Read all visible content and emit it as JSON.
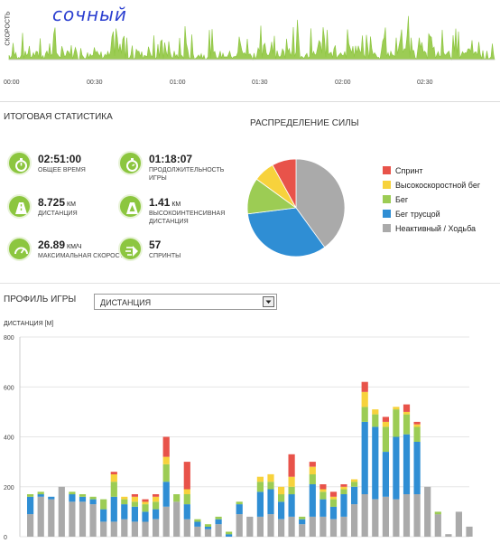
{
  "speed_chart": {
    "title": "сочный",
    "ylabel": "СКОРОСТЬ",
    "x_ticks": [
      "00:00",
      "00:30",
      "01:00",
      "01:30",
      "02:00",
      "02:30"
    ]
  },
  "summary": {
    "title": "ИТОГОВАЯ СТАТИСТИКА",
    "stats": [
      {
        "value": "02:51:00",
        "unit": "",
        "label": "ОБЩЕЕ ВРЕМЯ",
        "icon": "stopwatch-icon"
      },
      {
        "value": "01:18:07",
        "unit": "",
        "label": "ПРОДОЛЖИТЕЛЬНОСТЬ ИГРЫ",
        "icon": "stopwatch-icon"
      },
      {
        "value": "8.725",
        "unit": "КМ",
        "label": "ДИСТАНЦИЯ",
        "icon": "road-icon"
      },
      {
        "value": "1.41",
        "unit": "КМ",
        "label": "ВЫСОКОИНТЕНСИВНАЯ ДИСТАНЦИЯ",
        "icon": "road-icon"
      },
      {
        "value": "26.89",
        "unit": "КМ/Ч",
        "label": "МАКСИМАЛЬНАЯ СКОРОСТЬ",
        "icon": "speedometer-icon"
      },
      {
        "value": "57",
        "unit": "",
        "label": "СПРИНТЫ",
        "icon": "sprint-icon"
      }
    ]
  },
  "power_distribution": {
    "title": "РАСПРЕДЕЛЕНИЕ СИЛЫ",
    "legend": [
      {
        "label": "Спринт",
        "color": "#e8534a"
      },
      {
        "label": "Высокоскоростной бег",
        "color": "#f7d23c"
      },
      {
        "label": "Бег",
        "color": "#9ccc54"
      },
      {
        "label": "Бег трусцой",
        "color": "#2f8ed4"
      },
      {
        "label": "Неактивный / Ходьба",
        "color": "#aaaaaa"
      }
    ]
  },
  "game_profile": {
    "title": "ПРОФИЛЬ ИГРЫ",
    "select_value": "ДИСТАНЦИЯ",
    "ylabel": "ДИСТАНЦИЯ [М]"
  },
  "chart_data": [
    {
      "type": "pie",
      "title": "РАСПРЕДЕЛЕНИЕ СИЛЫ",
      "labels": [
        "Неактивный / Ходьба",
        "Бег трусцой",
        "Бег",
        "Высокоскоростной бег",
        "Спринт"
      ],
      "values": [
        40,
        33,
        12,
        7,
        8
      ],
      "colors": [
        "#aaaaaa",
        "#2f8ed4",
        "#9ccc54",
        "#f7d23c",
        "#e8534a"
      ]
    },
    {
      "type": "bar",
      "stacked": true,
      "ylabel": "ДИСТАНЦИЯ [М]",
      "ylim": [
        0,
        800
      ],
      "yticks": [
        0,
        200,
        400,
        600,
        800
      ],
      "series": [
        {
          "name": "Неактивный / Ходьба",
          "color": "#aaaaaa",
          "values": [
            90,
            160,
            150,
            200,
            140,
            140,
            130,
            60,
            60,
            70,
            60,
            60,
            70,
            120,
            140,
            70,
            40,
            30,
            50,
            0,
            90,
            80,
            80,
            90,
            70,
            80,
            50,
            80,
            80,
            70,
            80,
            130,
            170,
            150,
            160,
            150,
            170,
            170,
            200,
            90,
            10,
            100,
            40
          ]
        },
        {
          "name": "Бег трусцой",
          "color": "#2f8ed4",
          "values": [
            70,
            10,
            10,
            0,
            30,
            20,
            20,
            50,
            100,
            60,
            60,
            40,
            40,
            100,
            0,
            60,
            20,
            10,
            20,
            10,
            40,
            0,
            100,
            100,
            70,
            90,
            20,
            130,
            70,
            50,
            90,
            70,
            290,
            290,
            180,
            250,
            240,
            210,
            0,
            0,
            0,
            0,
            0
          ]
        },
        {
          "name": "Бег",
          "color": "#9ccc54",
          "values": [
            10,
            10,
            0,
            0,
            10,
            10,
            10,
            40,
            60,
            20,
            20,
            30,
            30,
            70,
            30,
            40,
            10,
            10,
            10,
            10,
            10,
            0,
            40,
            30,
            30,
            30,
            10,
            40,
            30,
            30,
            20,
            20,
            60,
            50,
            100,
            110,
            80,
            60,
            0,
            10,
            0,
            0,
            0
          ]
        },
        {
          "name": "Высокоскоростной бег",
          "color": "#f7d23c",
          "values": [
            0,
            0,
            0,
            0,
            0,
            0,
            0,
            0,
            30,
            10,
            20,
            10,
            20,
            30,
            0,
            20,
            0,
            0,
            0,
            0,
            0,
            0,
            20,
            30,
            30,
            40,
            0,
            30,
            10,
            10,
            10,
            10,
            60,
            20,
            20,
            10,
            10,
            10,
            0,
            0,
            0,
            0,
            0
          ]
        },
        {
          "name": "Спринт",
          "color": "#e8534a",
          "values": [
            0,
            0,
            0,
            0,
            0,
            0,
            0,
            0,
            10,
            0,
            10,
            10,
            10,
            80,
            0,
            110,
            0,
            0,
            0,
            0,
            0,
            0,
            0,
            0,
            0,
            90,
            0,
            20,
            20,
            20,
            10,
            0,
            40,
            0,
            20,
            0,
            30,
            10,
            0,
            0,
            0,
            0,
            0
          ]
        }
      ]
    }
  ]
}
